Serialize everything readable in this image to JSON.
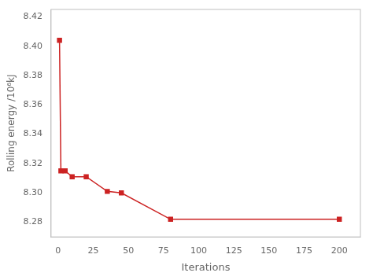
{
  "chart_data": {
    "type": "line",
    "x": [
      1,
      2,
      5,
      10,
      20,
      35,
      45,
      80,
      200
    ],
    "values": [
      8.404,
      8.315,
      8.315,
      8.311,
      8.311,
      8.301,
      8.3,
      8.282,
      8.282
    ],
    "color": "#cc2222",
    "marker": "square",
    "xlabel": "Iterations",
    "ylabel": "Rolling energy /10⁶kJ",
    "xlim": [
      -5,
      215
    ],
    "ylim": [
      8.27,
      8.425
    ],
    "xticks": [
      0,
      25,
      50,
      75,
      100,
      125,
      150,
      175,
      200
    ],
    "yticks": [
      8.28,
      {
        "value": 8.3,
        "label": "8.30"
      },
      8.32,
      8.34,
      8.36,
      8.38,
      {
        "value": 8.4,
        "label": "8.40"
      },
      8.42
    ],
    "grid": false
  }
}
